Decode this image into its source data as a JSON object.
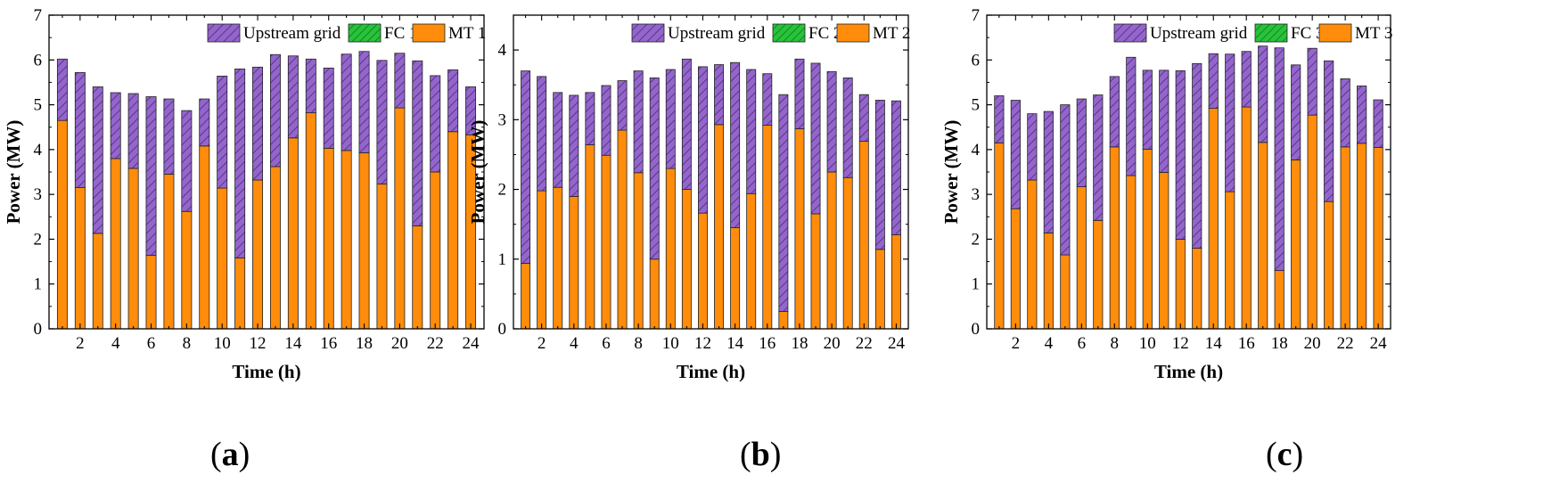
{
  "chart_data": [
    {
      "type": "bar",
      "stacked": true,
      "panel_label": "a",
      "xlabel": "Time (h)",
      "ylabel": "Power (MW)",
      "ylim": [
        0,
        7
      ],
      "yticks": [
        0,
        1,
        2,
        3,
        4,
        5,
        6,
        7
      ],
      "x": [
        1,
        2,
        3,
        4,
        5,
        6,
        7,
        8,
        9,
        10,
        11,
        12,
        13,
        14,
        15,
        16,
        17,
        18,
        19,
        20,
        21,
        22,
        23,
        24
      ],
      "xticks": [
        2,
        4,
        6,
        8,
        10,
        12,
        14,
        16,
        18,
        20,
        22,
        24
      ],
      "legend_position": "top-right",
      "series": [
        {
          "name": "MT 1",
          "color": "#ff8c0a",
          "values": [
            4.65,
            3.15,
            2.13,
            3.8,
            3.58,
            1.64,
            3.45,
            2.62,
            4.08,
            3.14,
            1.58,
            3.32,
            3.62,
            4.26,
            4.82,
            4.03,
            3.98,
            3.93,
            3.23,
            4.93,
            2.3,
            3.5,
            4.4,
            4.33
          ]
        },
        {
          "name": "FC 1",
          "color": "#27c33a",
          "values": [
            0,
            0,
            0,
            0,
            0,
            0,
            0,
            0,
            0,
            0,
            0,
            0,
            0,
            0,
            0,
            0,
            0,
            0,
            0,
            0,
            0,
            0,
            0,
            0
          ]
        },
        {
          "name": "Upstream grid",
          "color": "#9465cc",
          "values": [
            1.37,
            2.57,
            3.27,
            1.47,
            1.67,
            3.54,
            1.68,
            2.25,
            1.05,
            2.5,
            4.22,
            2.52,
            2.5,
            1.83,
            1.2,
            1.79,
            2.15,
            2.26,
            2.76,
            1.22,
            3.68,
            2.15,
            1.38,
            1.07
          ]
        }
      ]
    },
    {
      "type": "bar",
      "stacked": true,
      "panel_label": "b",
      "xlabel": "Time (h)",
      "ylabel": "Power (MW)",
      "ylim": [
        0,
        4.5
      ],
      "yticks": [
        0,
        1,
        2,
        3,
        4
      ],
      "x": [
        1,
        2,
        3,
        4,
        5,
        6,
        7,
        8,
        9,
        10,
        11,
        12,
        13,
        14,
        15,
        16,
        17,
        18,
        19,
        20,
        21,
        22,
        23,
        24
      ],
      "xticks": [
        2,
        4,
        6,
        8,
        10,
        12,
        14,
        16,
        18,
        20,
        22,
        24
      ],
      "legend_position": "top-right",
      "series": [
        {
          "name": "MT 2",
          "color": "#ff8c0a",
          "values": [
            0.94,
            1.98,
            2.03,
            1.9,
            2.64,
            2.49,
            2.85,
            2.24,
            1.0,
            2.3,
            2.0,
            1.66,
            2.93,
            1.45,
            1.94,
            2.92,
            0.25,
            2.87,
            1.65,
            2.25,
            2.17,
            2.69,
            1.14,
            1.35
          ]
        },
        {
          "name": "FC 2",
          "color": "#27c33a",
          "values": [
            0,
            0,
            0,
            0,
            0,
            0,
            0,
            0,
            0,
            0,
            0,
            0,
            0,
            0,
            0,
            0,
            0,
            0,
            0,
            0,
            0,
            0,
            0,
            0
          ]
        },
        {
          "name": "Upstream grid",
          "color": "#9465cc",
          "values": [
            2.76,
            1.64,
            1.36,
            1.45,
            0.75,
            1.0,
            0.71,
            1.46,
            2.6,
            1.42,
            1.87,
            2.1,
            0.86,
            2.37,
            1.78,
            0.74,
            3.11,
            1.0,
            2.16,
            1.44,
            1.43,
            0.67,
            2.14,
            1.92
          ]
        }
      ]
    },
    {
      "type": "bar",
      "stacked": true,
      "panel_label": "c",
      "xlabel": "Time (h)",
      "ylabel": "Power (MW)",
      "ylim": [
        0,
        7
      ],
      "yticks": [
        0,
        1,
        2,
        3,
        4,
        5,
        6,
        7
      ],
      "x": [
        1,
        2,
        3,
        4,
        5,
        6,
        7,
        8,
        9,
        10,
        11,
        12,
        13,
        14,
        15,
        16,
        17,
        18,
        19,
        20,
        21,
        22,
        23,
        24
      ],
      "xticks": [
        2,
        4,
        6,
        8,
        10,
        12,
        14,
        16,
        18,
        20,
        22,
        24
      ],
      "legend_position": "top-right",
      "series": [
        {
          "name": "MT 3",
          "color": "#ff8c0a",
          "values": [
            4.15,
            2.68,
            3.32,
            2.14,
            1.65,
            3.17,
            2.42,
            4.06,
            3.42,
            4.01,
            3.49,
            2.0,
            1.8,
            4.92,
            3.06,
            4.95,
            4.16,
            1.3,
            3.77,
            4.77,
            2.84,
            4.06,
            4.14,
            4.05
          ]
        },
        {
          "name": "FC 3",
          "color": "#27c33a",
          "values": [
            0,
            0,
            0,
            0,
            0,
            0,
            0,
            0,
            0,
            0,
            0,
            0,
            0,
            0,
            0,
            0,
            0,
            0,
            0,
            0,
            0,
            0,
            0,
            0
          ]
        },
        {
          "name": "Upstream grid",
          "color": "#9465cc",
          "values": [
            1.05,
            2.42,
            1.48,
            2.71,
            3.35,
            1.96,
            2.8,
            1.57,
            2.64,
            1.76,
            2.28,
            3.76,
            4.12,
            1.22,
            3.07,
            1.24,
            2.15,
            4.97,
            2.12,
            1.49,
            3.14,
            1.52,
            1.28,
            1.06
          ]
        }
      ]
    }
  ]
}
